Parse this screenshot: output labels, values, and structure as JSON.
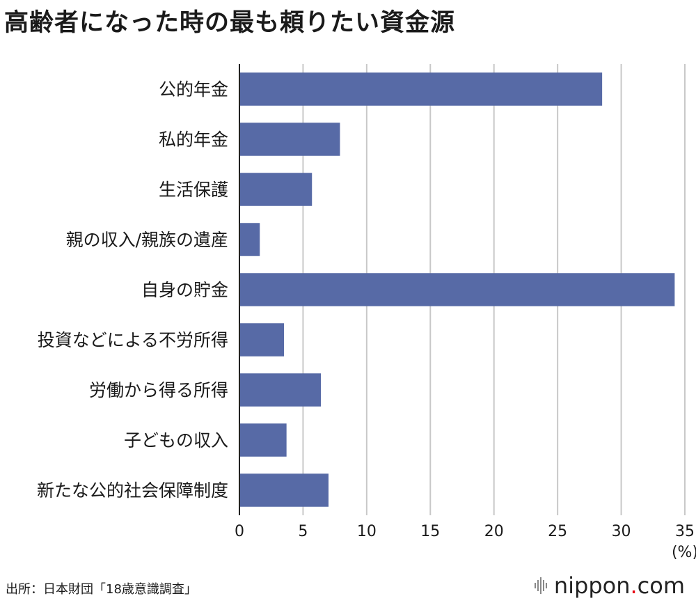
{
  "title": "高齢者になった時の最も頼りたい資金源",
  "source": "出所：日本財団「18歳意識調査」",
  "logo": {
    "name": "nippon",
    "dot": ".",
    "tld": "com"
  },
  "chart_data": {
    "type": "bar",
    "orientation": "horizontal",
    "categories": [
      "公的年金",
      "私的年金",
      "生活保護",
      "親の収入/親族の遺産",
      "自身の貯金",
      "投資などによる不労所得",
      "労働から得る所得",
      "子どもの収入",
      "新たな公的社会保障制度"
    ],
    "values": [
      28.5,
      7.9,
      5.7,
      1.6,
      34.2,
      3.5,
      6.4,
      3.7,
      7.0
    ],
    "xlim": [
      0,
      35
    ],
    "xticks": [
      "0",
      "5",
      "10",
      "15",
      "20",
      "25",
      "30",
      "35"
    ],
    "unit": "(%)",
    "grid": true,
    "bar_color": "#576aa6",
    "grid_color": "#c8c8c8",
    "axis_color": "#222222",
    "legend": "none"
  }
}
